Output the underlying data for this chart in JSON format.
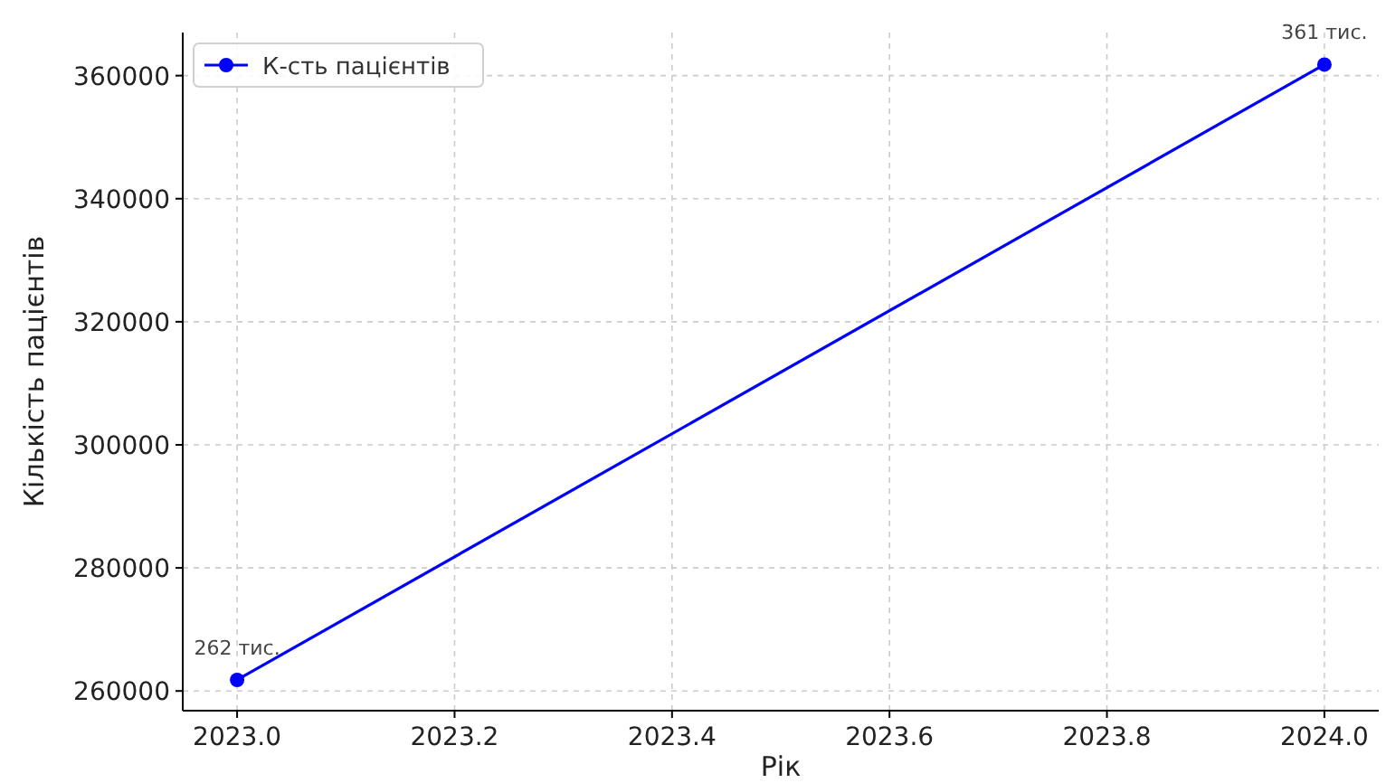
{
  "chart_data": {
    "type": "line",
    "xlabel": "Рік",
    "ylabel": "Кількість пацієнтів",
    "x": [
      2023,
      2024
    ],
    "series": [
      {
        "name": "К-сть пацієнтів",
        "color": "#0000ff",
        "values": [
          261800,
          361800
        ]
      }
    ],
    "annotations": [
      {
        "text": "262 тис.",
        "x": 2023,
        "y": 261800
      },
      {
        "text": "361 тис.",
        "x": 2024,
        "y": 361800
      }
    ],
    "xlim": [
      2022.95,
      2024.05
    ],
    "xticks": [
      {
        "value": 2023,
        "label": "2023.0"
      },
      {
        "value": 2023.2,
        "label": "2023.2"
      },
      {
        "value": 2023.4,
        "label": "2023.4"
      },
      {
        "value": 2023.6,
        "label": "2023.6"
      },
      {
        "value": 2023.8,
        "label": "2023.8"
      },
      {
        "value": 2024,
        "label": "2024.0"
      }
    ],
    "ylim": [
      256800,
      367000
    ],
    "yticks": [
      260000,
      280000,
      300000,
      320000,
      340000,
      360000
    ],
    "grid": true,
    "legend": "top left",
    "marker": "circle",
    "line_style": "solid"
  }
}
